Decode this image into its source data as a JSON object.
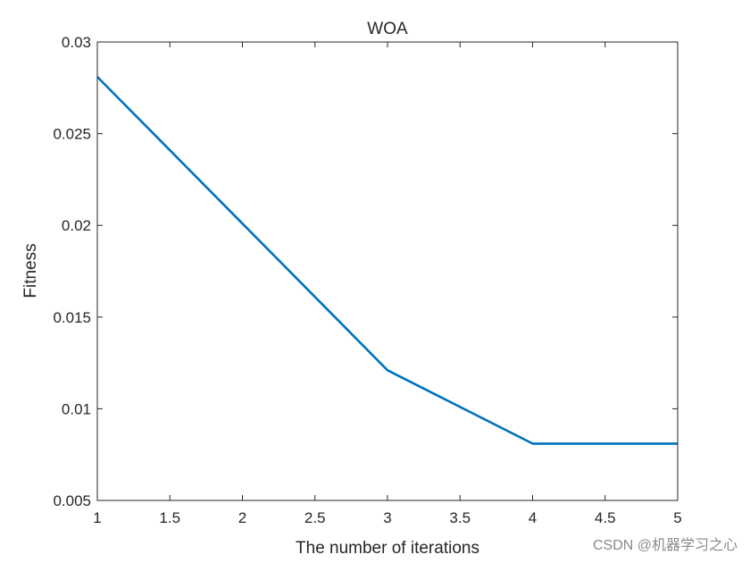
{
  "chart_data": {
    "type": "line",
    "title": "WOA",
    "xlabel": "The number of iterations",
    "ylabel": "Fitness",
    "xlim": [
      1,
      5
    ],
    "ylim": [
      0.005,
      0.03
    ],
    "x_ticks": [
      1,
      1.5,
      2,
      2.5,
      3,
      3.5,
      4,
      4.5,
      5
    ],
    "x_tick_labels": [
      "1",
      "1.5",
      "2",
      "2.5",
      "3",
      "3.5",
      "4",
      "4.5",
      "5"
    ],
    "y_ticks": [
      0.005,
      0.01,
      0.015,
      0.02,
      0.025,
      0.03
    ],
    "y_tick_labels": [
      "0.005",
      "0.01",
      "0.015",
      "0.02",
      "0.025",
      "0.03"
    ],
    "grid": false,
    "series": [
      {
        "x": [
          1,
          2,
          3,
          4,
          5
        ],
        "values": [
          0.0281,
          0.0201,
          0.0121,
          0.0081,
          0.0081
        ],
        "color": "#0072BD"
      }
    ]
  },
  "watermark": "CSDN @机器学习之心",
  "colors": {
    "axis": "#262626",
    "line": "#0072BD",
    "background": "#ffffff"
  }
}
